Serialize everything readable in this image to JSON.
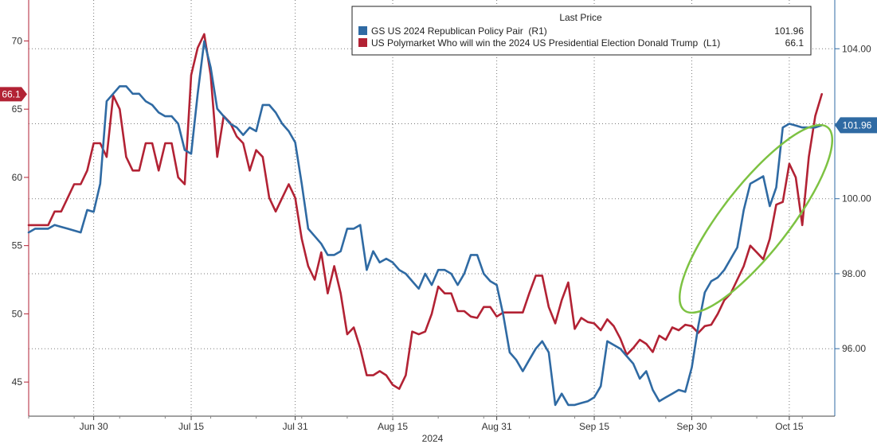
{
  "chart_data": {
    "type": "line",
    "grid": true,
    "x_axis": {
      "ticks": [
        "Jun 30",
        "Jul 15",
        "Jul 31",
        "Aug 15",
        "Aug 31",
        "Sep 15",
        "Sep 30",
        "Oct 15"
      ],
      "year_label": "2024",
      "range": [
        "2024-06-20",
        "2024-10-22"
      ]
    },
    "y_left": {
      "ticks": [
        "45",
        "50",
        "55",
        "60",
        "65",
        "70"
      ],
      "range": [
        42.5,
        73
      ]
    },
    "y_right": {
      "ticks": [
        "96.00",
        "98.00",
        "100.00",
        "102.00",
        "104.00"
      ],
      "range": [
        94.2,
        105.3
      ]
    },
    "legend": {
      "title": "Last Price",
      "items": [
        {
          "label": "GS US 2024 Republican Policy Pair  (R1)",
          "value": "101.96",
          "color": "#2f6aa3",
          "series": "gs_pair"
        },
        {
          "label": "US Polymarket Who will win the 2024 US Presidential Election Donald Trump  (L1)",
          "value": "66.1",
          "color": "#b22234",
          "series": "polymarket"
        }
      ]
    },
    "last_value_badges": [
      {
        "text": "66.1",
        "axis": "left",
        "value": 66.1,
        "color": "#b22234"
      },
      {
        "text": "101.96",
        "axis": "right",
        "value": 101.96,
        "color": "#2f6aa3"
      }
    ],
    "annotation": {
      "type": "ellipse",
      "color": "#7dc242",
      "description_shape": "highlight"
    },
    "series": [
      {
        "id": "polymarket",
        "axis": "left",
        "color": "#b22234",
        "points": [
          [
            "2024-06-20",
            56.5
          ],
          [
            "2024-06-21",
            56.5
          ],
          [
            "2024-06-22",
            56.5
          ],
          [
            "2024-06-23",
            56.5
          ],
          [
            "2024-06-24",
            57.5
          ],
          [
            "2024-06-25",
            57.5
          ],
          [
            "2024-06-26",
            58.5
          ],
          [
            "2024-06-27",
            59.5
          ],
          [
            "2024-06-28",
            59.5
          ],
          [
            "2024-06-29",
            60.5
          ],
          [
            "2024-06-30",
            62.5
          ],
          [
            "2024-07-01",
            62.5
          ],
          [
            "2024-07-02",
            61.5
          ],
          [
            "2024-07-03",
            66.0
          ],
          [
            "2024-07-04",
            65.0
          ],
          [
            "2024-07-05",
            61.5
          ],
          [
            "2024-07-06",
            60.5
          ],
          [
            "2024-07-07",
            60.5
          ],
          [
            "2024-07-08",
            62.5
          ],
          [
            "2024-07-09",
            62.5
          ],
          [
            "2024-07-10",
            60.5
          ],
          [
            "2024-07-11",
            62.5
          ],
          [
            "2024-07-12",
            62.5
          ],
          [
            "2024-07-13",
            60.0
          ],
          [
            "2024-07-14",
            59.5
          ],
          [
            "2024-07-15",
            67.5
          ],
          [
            "2024-07-16",
            69.5
          ],
          [
            "2024-07-17",
            70.5
          ],
          [
            "2024-07-18",
            67.5
          ],
          [
            "2024-07-19",
            61.5
          ],
          [
            "2024-07-20",
            64.5
          ],
          [
            "2024-07-21",
            64.0
          ],
          [
            "2024-07-22",
            63.0
          ],
          [
            "2024-07-23",
            62.5
          ],
          [
            "2024-07-24",
            60.5
          ],
          [
            "2024-07-25",
            62.0
          ],
          [
            "2024-07-26",
            61.5
          ],
          [
            "2024-07-27",
            58.5
          ],
          [
            "2024-07-28",
            57.5
          ],
          [
            "2024-07-29",
            58.5
          ],
          [
            "2024-07-30",
            59.5
          ],
          [
            "2024-07-31",
            58.5
          ],
          [
            "2024-08-01",
            55.5
          ],
          [
            "2024-08-02",
            53.5
          ],
          [
            "2024-08-03",
            52.5
          ],
          [
            "2024-08-04",
            54.5
          ],
          [
            "2024-08-05",
            51.5
          ],
          [
            "2024-08-06",
            53.5
          ],
          [
            "2024-08-07",
            51.5
          ],
          [
            "2024-08-08",
            48.5
          ],
          [
            "2024-08-09",
            49.0
          ],
          [
            "2024-08-10",
            47.5
          ],
          [
            "2024-08-11",
            45.5
          ],
          [
            "2024-08-12",
            45.5
          ],
          [
            "2024-08-13",
            45.8
          ],
          [
            "2024-08-14",
            45.5
          ],
          [
            "2024-08-15",
            44.8
          ],
          [
            "2024-08-16",
            44.5
          ],
          [
            "2024-08-17",
            45.5
          ],
          [
            "2024-08-18",
            48.7
          ],
          [
            "2024-08-19",
            48.5
          ],
          [
            "2024-08-20",
            48.7
          ],
          [
            "2024-08-21",
            50.0
          ],
          [
            "2024-08-22",
            52.0
          ],
          [
            "2024-08-23",
            51.5
          ],
          [
            "2024-08-24",
            51.5
          ],
          [
            "2024-08-25",
            50.2
          ],
          [
            "2024-08-26",
            50.2
          ],
          [
            "2024-08-27",
            49.8
          ],
          [
            "2024-08-28",
            49.7
          ],
          [
            "2024-08-29",
            50.5
          ],
          [
            "2024-08-30",
            50.5
          ],
          [
            "2024-08-31",
            49.8
          ],
          [
            "2024-09-01",
            50.1
          ],
          [
            "2024-09-02",
            50.1
          ],
          [
            "2024-09-03",
            50.1
          ],
          [
            "2024-09-04",
            50.1
          ],
          [
            "2024-09-05",
            51.5
          ],
          [
            "2024-09-06",
            52.8
          ],
          [
            "2024-09-07",
            52.8
          ],
          [
            "2024-09-08",
            50.5
          ],
          [
            "2024-09-09",
            49.3
          ],
          [
            "2024-09-10",
            51.0
          ],
          [
            "2024-09-11",
            52.3
          ],
          [
            "2024-09-12",
            48.9
          ],
          [
            "2024-09-13",
            49.7
          ],
          [
            "2024-09-14",
            49.4
          ],
          [
            "2024-09-15",
            49.3
          ],
          [
            "2024-09-16",
            48.8
          ],
          [
            "2024-09-17",
            49.6
          ],
          [
            "2024-09-18",
            49.1
          ],
          [
            "2024-09-19",
            48.2
          ],
          [
            "2024-09-20",
            47.0
          ],
          [
            "2024-09-21",
            47.5
          ],
          [
            "2024-09-22",
            48.1
          ],
          [
            "2024-09-23",
            47.8
          ],
          [
            "2024-09-24",
            47.2
          ],
          [
            "2024-09-25",
            48.4
          ],
          [
            "2024-09-26",
            48.1
          ],
          [
            "2024-09-27",
            49.0
          ],
          [
            "2024-09-28",
            48.8
          ],
          [
            "2024-09-29",
            49.2
          ],
          [
            "2024-09-30",
            49.1
          ],
          [
            "2024-10-01",
            48.6
          ],
          [
            "2024-10-02",
            49.1
          ],
          [
            "2024-10-03",
            49.2
          ],
          [
            "2024-10-04",
            50.0
          ],
          [
            "2024-10-05",
            51.0
          ],
          [
            "2024-10-06",
            51.5
          ],
          [
            "2024-10-07",
            52.5
          ],
          [
            "2024-10-08",
            53.5
          ],
          [
            "2024-10-09",
            55.0
          ],
          [
            "2024-10-10",
            54.5
          ],
          [
            "2024-10-11",
            54.0
          ],
          [
            "2024-10-12",
            55.5
          ],
          [
            "2024-10-13",
            58.0
          ],
          [
            "2024-10-14",
            58.2
          ],
          [
            "2024-10-15",
            61.0
          ],
          [
            "2024-10-16",
            60.0
          ],
          [
            "2024-10-17",
            56.5
          ],
          [
            "2024-10-18",
            61.5
          ],
          [
            "2024-10-19",
            64.5
          ],
          [
            "2024-10-20",
            66.1
          ]
        ]
      },
      {
        "id": "gs_pair",
        "axis": "right",
        "color": "#2f6aa3",
        "points": [
          [
            "2024-06-20",
            99.1
          ],
          [
            "2024-06-21",
            99.2
          ],
          [
            "2024-06-22",
            99.2
          ],
          [
            "2024-06-23",
            99.2
          ],
          [
            "2024-06-24",
            99.3
          ],
          [
            "2024-06-25",
            99.25
          ],
          [
            "2024-06-26",
            99.2
          ],
          [
            "2024-06-27",
            99.15
          ],
          [
            "2024-06-28",
            99.1
          ],
          [
            "2024-06-29",
            99.7
          ],
          [
            "2024-06-30",
            99.65
          ],
          [
            "2024-07-01",
            100.4
          ],
          [
            "2024-07-02",
            102.6
          ],
          [
            "2024-07-03",
            102.8
          ],
          [
            "2024-07-04",
            103.0
          ],
          [
            "2024-07-05",
            103.0
          ],
          [
            "2024-07-06",
            102.8
          ],
          [
            "2024-07-07",
            102.8
          ],
          [
            "2024-07-08",
            102.6
          ],
          [
            "2024-07-09",
            102.5
          ],
          [
            "2024-07-10",
            102.3
          ],
          [
            "2024-07-11",
            102.2
          ],
          [
            "2024-07-12",
            102.2
          ],
          [
            "2024-07-13",
            102.0
          ],
          [
            "2024-07-14",
            101.3
          ],
          [
            "2024-07-15",
            101.2
          ],
          [
            "2024-07-16",
            102.8
          ],
          [
            "2024-07-17",
            104.2
          ],
          [
            "2024-07-18",
            103.5
          ],
          [
            "2024-07-19",
            102.4
          ],
          [
            "2024-07-20",
            102.2
          ],
          [
            "2024-07-21",
            102.0
          ],
          [
            "2024-07-22",
            101.9
          ],
          [
            "2024-07-23",
            101.7
          ],
          [
            "2024-07-24",
            101.9
          ],
          [
            "2024-07-25",
            101.8
          ],
          [
            "2024-07-26",
            102.5
          ],
          [
            "2024-07-27",
            102.5
          ],
          [
            "2024-07-28",
            102.3
          ],
          [
            "2024-07-29",
            102.0
          ],
          [
            "2024-07-30",
            101.8
          ],
          [
            "2024-07-31",
            101.5
          ],
          [
            "2024-08-01",
            100.4
          ],
          [
            "2024-08-02",
            99.2
          ],
          [
            "2024-08-03",
            99.0
          ],
          [
            "2024-08-04",
            98.8
          ],
          [
            "2024-08-05",
            98.5
          ],
          [
            "2024-08-06",
            98.5
          ],
          [
            "2024-08-07",
            98.6
          ],
          [
            "2024-08-08",
            99.2
          ],
          [
            "2024-08-09",
            99.2
          ],
          [
            "2024-08-10",
            99.3
          ],
          [
            "2024-08-11",
            98.1
          ],
          [
            "2024-08-12",
            98.6
          ],
          [
            "2024-08-13",
            98.3
          ],
          [
            "2024-08-14",
            98.4
          ],
          [
            "2024-08-15",
            98.3
          ],
          [
            "2024-08-16",
            98.1
          ],
          [
            "2024-08-17",
            98.0
          ],
          [
            "2024-08-18",
            97.8
          ],
          [
            "2024-08-19",
            97.6
          ],
          [
            "2024-08-20",
            98.0
          ],
          [
            "2024-08-21",
            97.7
          ],
          [
            "2024-08-22",
            98.1
          ],
          [
            "2024-08-23",
            98.1
          ],
          [
            "2024-08-24",
            98.0
          ],
          [
            "2024-08-25",
            97.7
          ],
          [
            "2024-08-26",
            98.0
          ],
          [
            "2024-08-27",
            98.5
          ],
          [
            "2024-08-28",
            98.5
          ],
          [
            "2024-08-29",
            98.0
          ],
          [
            "2024-08-30",
            97.8
          ],
          [
            "2024-08-31",
            97.7
          ],
          [
            "2024-09-01",
            96.9
          ],
          [
            "2024-09-02",
            95.9
          ],
          [
            "2024-09-03",
            95.7
          ],
          [
            "2024-09-04",
            95.4
          ],
          [
            "2024-09-05",
            95.7
          ],
          [
            "2024-09-06",
            96.0
          ],
          [
            "2024-09-07",
            96.2
          ],
          [
            "2024-09-08",
            95.9
          ],
          [
            "2024-09-09",
            94.5
          ],
          [
            "2024-09-10",
            94.8
          ],
          [
            "2024-09-11",
            94.5
          ],
          [
            "2024-09-12",
            94.5
          ],
          [
            "2024-09-13",
            94.55
          ],
          [
            "2024-09-14",
            94.6
          ],
          [
            "2024-09-15",
            94.7
          ],
          [
            "2024-09-16",
            95.0
          ],
          [
            "2024-09-17",
            96.2
          ],
          [
            "2024-09-18",
            96.1
          ],
          [
            "2024-09-19",
            96.0
          ],
          [
            "2024-09-20",
            95.8
          ],
          [
            "2024-09-21",
            95.6
          ],
          [
            "2024-09-22",
            95.2
          ],
          [
            "2024-09-23",
            95.4
          ],
          [
            "2024-09-24",
            94.9
          ],
          [
            "2024-09-25",
            94.6
          ],
          [
            "2024-09-26",
            94.7
          ],
          [
            "2024-09-27",
            94.8
          ],
          [
            "2024-09-28",
            94.9
          ],
          [
            "2024-09-29",
            94.85
          ],
          [
            "2024-09-30",
            95.5
          ],
          [
            "2024-10-01",
            96.6
          ],
          [
            "2024-10-02",
            97.5
          ],
          [
            "2024-10-03",
            97.8
          ],
          [
            "2024-10-04",
            97.9
          ],
          [
            "2024-10-05",
            98.1
          ],
          [
            "2024-10-06",
            98.4
          ],
          [
            "2024-10-07",
            98.7
          ],
          [
            "2024-10-08",
            99.7
          ],
          [
            "2024-10-09",
            100.4
          ],
          [
            "2024-10-10",
            100.5
          ],
          [
            "2024-10-11",
            100.6
          ],
          [
            "2024-10-12",
            99.8
          ],
          [
            "2024-10-13",
            100.3
          ],
          [
            "2024-10-14",
            101.9
          ],
          [
            "2024-10-15",
            102.0
          ],
          [
            "2024-10-16",
            101.95
          ],
          [
            "2024-10-17",
            101.9
          ],
          [
            "2024-10-18",
            101.9
          ],
          [
            "2024-10-19",
            101.9
          ],
          [
            "2024-10-20",
            101.96
          ]
        ]
      }
    ]
  }
}
